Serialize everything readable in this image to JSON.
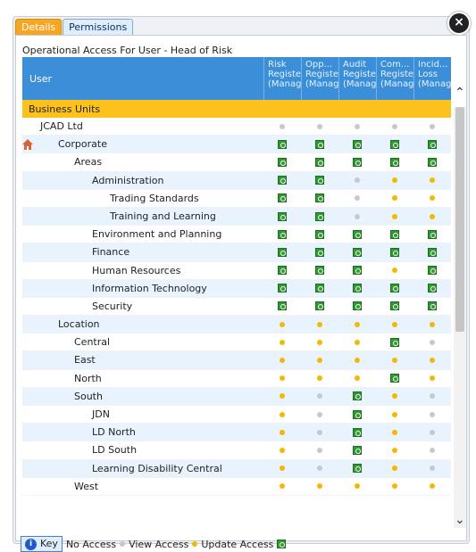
{
  "tabs": [
    {
      "label": "Details"
    },
    {
      "label": "Permissions"
    }
  ],
  "title": "Operational Access For User - Head of Risk",
  "columns": {
    "user": "User",
    "items": [
      [
        "Risk",
        "Registe",
        "(Manag"
      ],
      [
        "Opp...",
        "Registe",
        "(Manag"
      ],
      [
        "Audit",
        "Registe",
        "(Manag"
      ],
      [
        "Com...",
        "Registe",
        "(Manag"
      ],
      [
        "Incid...",
        "Loss",
        "(Manag"
      ]
    ]
  },
  "section": "Business Units",
  "rows": [
    {
      "name": "JCAD Ltd",
      "indent": 0,
      "cells": [
        "n",
        "n",
        "n",
        "n",
        "n"
      ]
    },
    {
      "name": "Corporate",
      "indent": 1,
      "icon": "house-icon",
      "cells": [
        "u",
        "u",
        "u",
        "u",
        "u"
      ]
    },
    {
      "name": "Areas",
      "indent": 2,
      "cells": [
        "u",
        "u",
        "u",
        "u",
        "u"
      ]
    },
    {
      "name": "Administration",
      "indent": 3,
      "cells": [
        "u",
        "u",
        "n",
        "v",
        "v"
      ]
    },
    {
      "name": "Trading Standards",
      "indent": 4,
      "cells": [
        "u",
        "u",
        "n",
        "v",
        "v"
      ]
    },
    {
      "name": "Training and Learning",
      "indent": 4,
      "cells": [
        "u",
        "u",
        "n",
        "v",
        "v"
      ]
    },
    {
      "name": "Environment and Planning",
      "indent": 3,
      "cells": [
        "u",
        "u",
        "u",
        "u",
        "u"
      ]
    },
    {
      "name": "Finance",
      "indent": 3,
      "cells": [
        "u",
        "u",
        "u",
        "u",
        "u"
      ]
    },
    {
      "name": "Human Resources",
      "indent": 3,
      "cells": [
        "u",
        "u",
        "u",
        "v",
        "u"
      ]
    },
    {
      "name": "Information Technology",
      "indent": 3,
      "cells": [
        "u",
        "u",
        "u",
        "u",
        "u"
      ]
    },
    {
      "name": "Security",
      "indent": 3,
      "cells": [
        "u",
        "u",
        "u",
        "u",
        "u"
      ]
    },
    {
      "name": "Location",
      "indent": 1,
      "cells": [
        "v",
        "v",
        "v",
        "v",
        "v"
      ]
    },
    {
      "name": "Central",
      "indent": 2,
      "cells": [
        "v",
        "v",
        "v",
        "u",
        "n"
      ]
    },
    {
      "name": "East",
      "indent": 2,
      "cells": [
        "v",
        "v",
        "v",
        "v",
        "v"
      ]
    },
    {
      "name": "North",
      "indent": 2,
      "cells": [
        "v",
        "v",
        "v",
        "u",
        "v"
      ]
    },
    {
      "name": "South",
      "indent": 2,
      "cells": [
        "v",
        "n",
        "u",
        "v",
        "n"
      ]
    },
    {
      "name": "JDN",
      "indent": 3,
      "cells": [
        "v",
        "n",
        "u",
        "v",
        "n"
      ]
    },
    {
      "name": "LD North",
      "indent": 3,
      "cells": [
        "v",
        "n",
        "u",
        "v",
        "n"
      ]
    },
    {
      "name": "LD South",
      "indent": 3,
      "cells": [
        "v",
        "n",
        "u",
        "v",
        "n"
      ]
    },
    {
      "name": "Learning Disability Central",
      "indent": 3,
      "cells": [
        "v",
        "n",
        "u",
        "v",
        "n"
      ]
    },
    {
      "name": "West",
      "indent": 2,
      "cells": [
        "v",
        "v",
        "v",
        "v",
        "v"
      ]
    }
  ],
  "key": {
    "label": "Key",
    "no_access": "No Access",
    "view_access": "View Access",
    "update_access": "Update Access"
  }
}
